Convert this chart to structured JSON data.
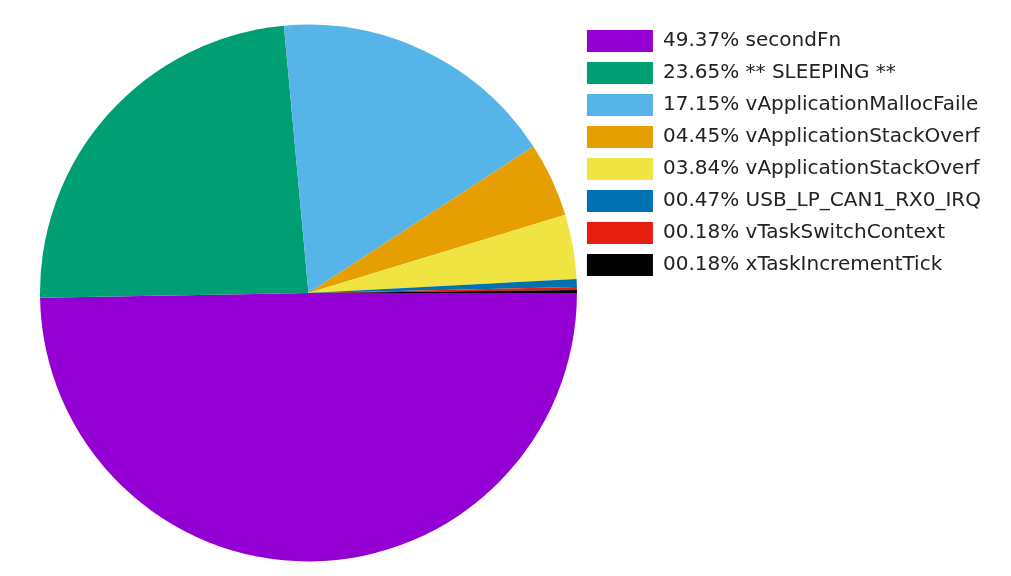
{
  "chart_data": {
    "type": "pie",
    "categories": [
      "secondFn",
      "** SLEEPING **",
      "vApplicationMallocFaile",
      "vApplicationStackOverf",
      "vApplicationStackOverf",
      "USB_LP_CAN1_RX0_IRQ",
      "vTaskSwitchContext",
      "xTaskIncrementTick"
    ],
    "values": [
      49.37,
      23.65,
      17.15,
      4.45,
      3.84,
      0.47,
      0.18,
      0.18
    ],
    "value_labels": [
      "49.37%",
      "23.65%",
      "17.15%",
      "04.45%",
      "03.84%",
      "00.47%",
      "00.18%",
      "00.18%"
    ],
    "colors": [
      "#9400d3",
      "#009e73",
      "#56b4e9",
      "#e69f00",
      "#f0e442",
      "#0072b2",
      "#e51e10",
      "#000000"
    ],
    "legend": "right"
  }
}
